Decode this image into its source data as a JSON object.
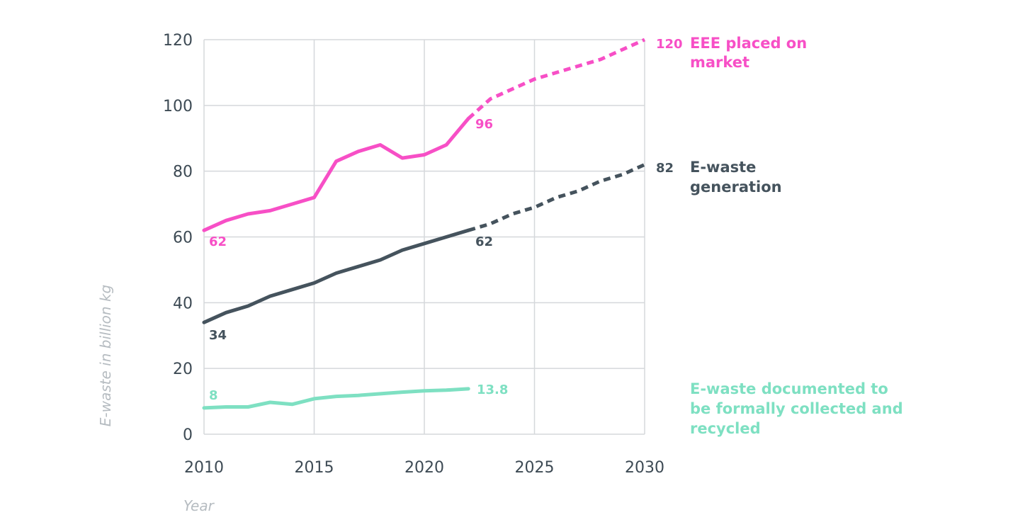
{
  "chart_data": {
    "type": "line",
    "xlabel": "Year",
    "ylabel": "E-waste in billion kg",
    "xlim": [
      2010,
      2030
    ],
    "ylim": [
      0,
      120
    ],
    "x_ticks": [
      "2010",
      "2015",
      "2020",
      "2025",
      "2030"
    ],
    "y_ticks": [
      "0",
      "20",
      "40",
      "60",
      "80",
      "100",
      "120"
    ],
    "grid": true,
    "legend": "right, inline at line ends",
    "series": [
      {
        "name": "EEE placed on market",
        "color": "#f74fc6",
        "x": [
          2010,
          2011,
          2012,
          2013,
          2014,
          2015,
          2016,
          2017,
          2018,
          2019,
          2020,
          2021,
          2022
        ],
        "values": [
          62,
          65,
          67,
          68,
          70,
          72,
          83,
          86,
          88,
          84,
          85,
          88,
          96
        ],
        "projection_x": [
          2022,
          2023,
          2024,
          2025,
          2026,
          2027,
          2028,
          2029,
          2030
        ],
        "projection_values": [
          96,
          102,
          105,
          108,
          110,
          112,
          114,
          117,
          120
        ],
        "start_label": "62",
        "end_label": "96",
        "projection_end_label": "120",
        "name_lines": [
          "EEE placed on",
          "market"
        ]
      },
      {
        "name": "E-waste generation",
        "color": "#45535d",
        "x": [
          2010,
          2011,
          2012,
          2013,
          2014,
          2015,
          2016,
          2017,
          2018,
          2019,
          2020,
          2021,
          2022
        ],
        "values": [
          34,
          37,
          39,
          42,
          44,
          46,
          49,
          51,
          53,
          56,
          58,
          60,
          62
        ],
        "projection_x": [
          2022,
          2023,
          2024,
          2025,
          2026,
          2027,
          2028,
          2029,
          2030
        ],
        "projection_values": [
          62,
          64,
          67,
          69,
          72,
          74,
          77,
          79,
          82
        ],
        "start_label": "34",
        "end_label": "62",
        "projection_end_label": "82",
        "name_lines": [
          "E-waste",
          "generation"
        ]
      },
      {
        "name": "E-waste documented to be formally collected and recycled",
        "color": "#7ee0c2",
        "x": [
          2010,
          2011,
          2012,
          2013,
          2014,
          2015,
          2016,
          2017,
          2018,
          2019,
          2020,
          2021,
          2022
        ],
        "values": [
          8,
          8.3,
          8.3,
          9.7,
          9.1,
          10.8,
          11.5,
          11.8,
          12.3,
          12.8,
          13.2,
          13.4,
          13.8
        ],
        "projection_x": [],
        "projection_values": [],
        "start_label": "8",
        "end_label": "13.8",
        "projection_end_label": "",
        "name_lines": [
          "E-waste documented to",
          "be formally collected and",
          "recycled"
        ]
      }
    ]
  }
}
